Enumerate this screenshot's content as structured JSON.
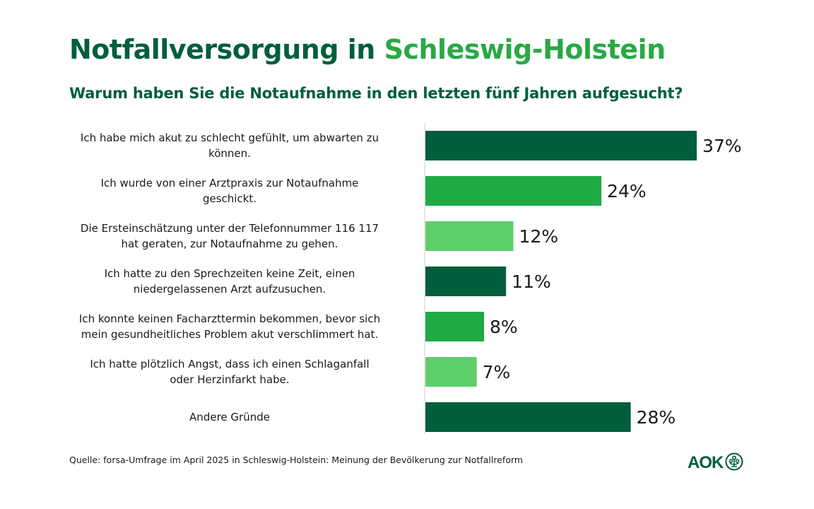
{
  "header": {
    "title_part1": "Notfallversorgung in",
    "title_part2": "Schleswig-Holstein",
    "subtitle": "Warum haben Sie die Notaufnahme in den letzten fünf Jahren aufgesucht?"
  },
  "colors": {
    "dark_green": "#005e3c",
    "mid_green": "#1eaa44",
    "light_green": "#5fcf6c",
    "title_accent": "#2aa845",
    "axis": "#cccccc",
    "text": "#1a1a1a"
  },
  "chart_data": {
    "type": "bar",
    "orientation": "horizontal",
    "title": "Warum haben Sie die Notaufnahme in den letzten fünf Jahren aufgesucht?",
    "xlabel": "",
    "ylabel": "",
    "unit": "%",
    "xlim": [
      0,
      37
    ],
    "grid": false,
    "legend": "none",
    "categories": [
      [
        "Ich habe mich akut zu schlecht gefühlt, um abwarten zu",
        "können."
      ],
      [
        "Ich wurde von einer Arztpraxis zur Notaufnahme",
        "geschickt."
      ],
      [
        "Die Ersteinschätzung unter der Telefonnummer 116 117",
        "hat geraten, zur Notaufnahme zu gehen."
      ],
      [
        "Ich hatte zu den Sprechzeiten keine Zeit, einen",
        "niedergelassenen Arzt aufzusuchen."
      ],
      [
        "Ich konnte keinen Facharzttermin bekommen, bevor sich",
        "mein gesundheitliches Problem akut verschlimmert hat."
      ],
      [
        "Ich hatte plötzlich Angst, dass ich einen Schlaganfall",
        "oder Herzinfarkt habe."
      ],
      [
        "Andere Gründe"
      ]
    ],
    "values": [
      37,
      24,
      12,
      11,
      8,
      7,
      28
    ],
    "value_labels": [
      "37%",
      "24%",
      "12%",
      "11%",
      "8%",
      "7%",
      "28%"
    ],
    "bar_colors": [
      "#005e3c",
      "#1eaa44",
      "#5fcf6c",
      "#005e3c",
      "#1eaa44",
      "#5fcf6c",
      "#005e3c"
    ]
  },
  "footer": {
    "source": "Quelle: forsa-Umfrage im April 2025 in Schleswig-Holstein: Meinung der Bevölkerung zur Notfallreform",
    "logo_text": "AOK",
    "logo_icon": "aok-tree-icon"
  }
}
